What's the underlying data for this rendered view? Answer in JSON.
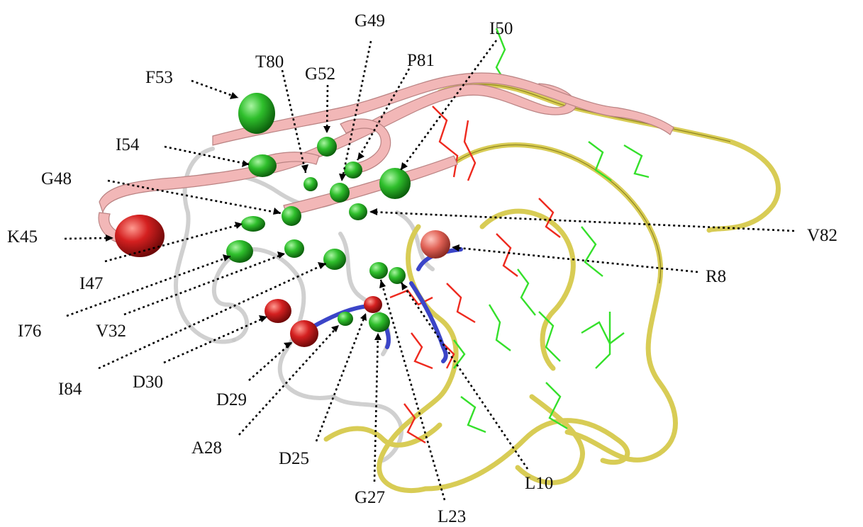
{
  "labels": [
    {
      "id": "f53",
      "text": "F53"
    },
    {
      "id": "t80",
      "text": "T80"
    },
    {
      "id": "g52",
      "text": "G52"
    },
    {
      "id": "g49",
      "text": "G49"
    },
    {
      "id": "p81",
      "text": "P81"
    },
    {
      "id": "i50",
      "text": "I50"
    },
    {
      "id": "i54",
      "text": "I54"
    },
    {
      "id": "g48",
      "text": "G48"
    },
    {
      "id": "k45",
      "text": "K45"
    },
    {
      "id": "i47",
      "text": "I47"
    },
    {
      "id": "i76",
      "text": "I76"
    },
    {
      "id": "v32",
      "text": "V32"
    },
    {
      "id": "i84",
      "text": "I84"
    },
    {
      "id": "d30",
      "text": "D30"
    },
    {
      "id": "d29",
      "text": "D29"
    },
    {
      "id": "a28",
      "text": "A28"
    },
    {
      "id": "d25",
      "text": "D25"
    },
    {
      "id": "g27",
      "text": "G27"
    },
    {
      "id": "l23",
      "text": "L23"
    },
    {
      "id": "l10",
      "text": "L10"
    },
    {
      "id": "v82",
      "text": "V82"
    },
    {
      "id": "r8",
      "text": "R8"
    }
  ],
  "colors": {
    "sphere_green": "#1fb01f",
    "sphere_red": "#d42020",
    "ribbon_pink": "#f2b7b7",
    "ribbon_yellow": "#d8cc55",
    "coil_blue": "#3b45c8",
    "coil_grey": "#c8c8c8",
    "stick_red": "#ee2a1f",
    "stick_green": "#35e02b"
  }
}
